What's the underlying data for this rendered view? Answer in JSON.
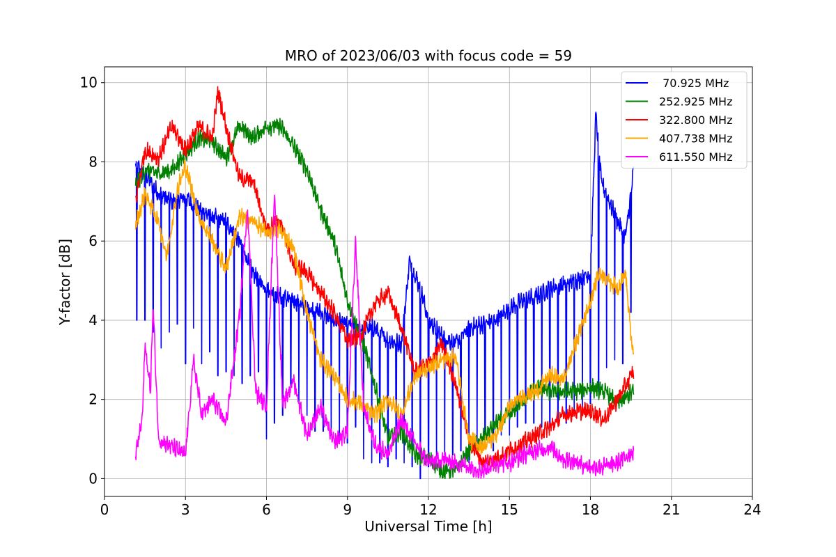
{
  "chart_data": {
    "type": "line",
    "title": "MRO of 2023/06/03 with focus code = 59",
    "xlabel": "Universal Time [h]",
    "ylabel": "Y-factor [dB]",
    "xlim": [
      0,
      24
    ],
    "ylim": [
      -0.45,
      10.4
    ],
    "xticks": [
      0,
      3,
      6,
      9,
      12,
      15,
      18,
      21,
      24
    ],
    "yticks": [
      0,
      2,
      4,
      6,
      8,
      10
    ],
    "grid": true,
    "legend_position": "top-right",
    "series": [
      {
        "name": " 70.925 MHz",
        "color": "#0000ff",
        "points": [
          [
            1.15,
            7.9
          ],
          [
            1.5,
            7.7
          ],
          [
            2.0,
            7.2
          ],
          [
            2.5,
            7.0
          ],
          [
            3.0,
            7.1
          ],
          [
            3.5,
            6.8
          ],
          [
            4.0,
            6.6
          ],
          [
            4.5,
            6.5
          ],
          [
            5.0,
            6.0
          ],
          [
            5.5,
            5.2
          ],
          [
            6.0,
            4.8
          ],
          [
            6.5,
            4.6
          ],
          [
            7.0,
            4.5
          ],
          [
            7.5,
            4.3
          ],
          [
            8.0,
            4.2
          ],
          [
            8.5,
            4.0
          ],
          [
            9.0,
            3.9
          ],
          [
            9.5,
            3.8
          ],
          [
            10.0,
            3.8
          ],
          [
            10.5,
            3.5
          ],
          [
            11.0,
            3.4
          ],
          [
            11.3,
            5.5
          ],
          [
            11.7,
            4.8
          ],
          [
            12.0,
            4.0
          ],
          [
            12.5,
            3.6
          ],
          [
            13.0,
            3.4
          ],
          [
            13.5,
            3.8
          ],
          [
            14.0,
            3.9
          ],
          [
            14.5,
            4.0
          ],
          [
            15.0,
            4.3
          ],
          [
            15.5,
            4.5
          ],
          [
            16.0,
            4.6
          ],
          [
            16.5,
            4.8
          ],
          [
            17.0,
            4.9
          ],
          [
            17.5,
            5.0
          ],
          [
            18.0,
            5.2
          ],
          [
            18.2,
            9.2
          ],
          [
            18.4,
            7.5
          ],
          [
            18.7,
            7.0
          ],
          [
            19.0,
            6.5
          ],
          [
            19.3,
            6.1
          ],
          [
            19.5,
            7.2
          ],
          [
            19.6,
            7.8
          ]
        ],
        "dips": [
          1.2,
          1.5,
          1.8,
          2.1,
          2.4,
          2.7,
          3.0,
          3.3,
          3.6,
          3.9,
          4.2,
          4.5,
          4.8,
          5.1,
          5.4,
          5.7,
          6.0,
          6.3,
          6.6,
          6.9,
          7.2,
          7.5,
          7.8,
          8.1,
          8.4,
          8.7,
          9.0,
          9.3,
          9.6,
          9.9,
          10.2,
          10.5,
          10.8,
          11.1,
          11.4,
          11.7,
          12.0,
          12.3,
          12.6,
          12.9,
          13.2,
          13.5,
          13.8,
          14.1,
          14.4,
          14.7,
          15.0,
          15.3,
          15.6,
          15.9,
          16.2,
          16.5,
          16.8,
          17.1,
          17.4,
          17.7,
          18.0,
          18.3,
          18.6,
          18.9,
          19.2,
          19.5
        ],
        "dip_low": [
          4.0,
          4.0,
          3.7,
          3.3,
          3.7,
          3.9,
          2.9,
          3.8,
          2.9,
          3.2,
          2.6,
          2.7,
          2.6,
          2.4,
          2.6,
          2.7,
          1.0,
          1.4,
          1.6,
          2.3,
          1.9,
          1.6,
          1.2,
          1.2,
          1.1,
          0.9,
          0.9,
          1.3,
          0.5,
          0.4,
          0.4,
          0.3,
          0.5,
          0.4,
          0.3,
          0.0,
          0.3,
          0.3,
          0.5,
          0.6,
          0.7,
          0.4,
          0.9,
          0.9,
          0.7,
          1.1,
          1.1,
          1.3,
          1.4,
          1.4,
          1.3,
          1.3,
          1.5,
          1.4,
          1.6,
          1.6,
          1.9,
          2.2,
          2.8,
          3.0,
          2.9,
          4.2
        ]
      },
      {
        "name": "252.925 MHz",
        "color": "#008000",
        "points": [
          [
            1.15,
            7.4
          ],
          [
            1.5,
            7.8
          ],
          [
            2.0,
            7.7
          ],
          [
            2.5,
            7.8
          ],
          [
            3.0,
            8.2
          ],
          [
            3.5,
            8.6
          ],
          [
            4.0,
            8.5
          ],
          [
            4.5,
            8.1
          ],
          [
            5.0,
            8.9
          ],
          [
            5.5,
            8.6
          ],
          [
            6.0,
            8.9
          ],
          [
            6.5,
            8.9
          ],
          [
            7.0,
            8.4
          ],
          [
            7.5,
            7.8
          ],
          [
            8.0,
            6.8
          ],
          [
            8.5,
            6.0
          ],
          [
            9.0,
            4.5
          ],
          [
            9.5,
            3.6
          ],
          [
            10.0,
            2.4
          ],
          [
            10.5,
            1.0
          ],
          [
            11.0,
            1.2
          ],
          [
            11.5,
            0.6
          ],
          [
            12.0,
            0.5
          ],
          [
            12.5,
            0.2
          ],
          [
            13.0,
            0.2
          ],
          [
            13.5,
            0.7
          ],
          [
            14.0,
            1.0
          ],
          [
            14.5,
            1.4
          ],
          [
            15.0,
            1.6
          ],
          [
            15.5,
            2.0
          ],
          [
            16.0,
            2.3
          ],
          [
            16.5,
            2.2
          ],
          [
            17.0,
            2.2
          ],
          [
            17.5,
            2.2
          ],
          [
            18.0,
            2.3
          ],
          [
            18.5,
            2.2
          ],
          [
            19.0,
            1.9
          ],
          [
            19.6,
            2.2
          ]
        ]
      },
      {
        "name": "322.800 MHz",
        "color": "#ff0000",
        "points": [
          [
            1.15,
            7.0
          ],
          [
            1.5,
            8.3
          ],
          [
            2.0,
            8.1
          ],
          [
            2.5,
            8.9
          ],
          [
            3.0,
            8.3
          ],
          [
            3.5,
            8.9
          ],
          [
            4.0,
            8.6
          ],
          [
            4.2,
            9.8
          ],
          [
            4.5,
            8.9
          ],
          [
            5.0,
            7.6
          ],
          [
            5.5,
            7.5
          ],
          [
            6.0,
            6.3
          ],
          [
            6.5,
            6.5
          ],
          [
            7.0,
            5.4
          ],
          [
            7.5,
            5.2
          ],
          [
            8.0,
            4.7
          ],
          [
            8.5,
            4.2
          ],
          [
            9.0,
            3.5
          ],
          [
            9.5,
            3.6
          ],
          [
            10.0,
            4.4
          ],
          [
            10.5,
            4.7
          ],
          [
            11.0,
            3.8
          ],
          [
            11.5,
            2.7
          ],
          [
            12.0,
            2.9
          ],
          [
            12.5,
            3.4
          ],
          [
            13.0,
            2.4
          ],
          [
            13.5,
            1.0
          ],
          [
            14.0,
            0.4
          ],
          [
            14.5,
            0.5
          ],
          [
            15.0,
            0.7
          ],
          [
            15.5,
            0.9
          ],
          [
            16.0,
            1.1
          ],
          [
            16.5,
            1.3
          ],
          [
            17.0,
            1.6
          ],
          [
            17.5,
            1.7
          ],
          [
            18.0,
            1.7
          ],
          [
            18.5,
            1.5
          ],
          [
            19.0,
            2.0
          ],
          [
            19.6,
            2.7
          ]
        ]
      },
      {
        "name": "407.738 MHz",
        "color": "#ffa500",
        "points": [
          [
            1.15,
            6.4
          ],
          [
            1.5,
            7.2
          ],
          [
            2.0,
            6.5
          ],
          [
            2.3,
            5.6
          ],
          [
            2.7,
            7.3
          ],
          [
            3.0,
            7.9
          ],
          [
            3.5,
            6.6
          ],
          [
            4.0,
            6.0
          ],
          [
            4.5,
            5.3
          ],
          [
            5.0,
            6.6
          ],
          [
            5.5,
            6.5
          ],
          [
            6.0,
            6.2
          ],
          [
            6.5,
            6.3
          ],
          [
            7.0,
            5.8
          ],
          [
            7.5,
            4.2
          ],
          [
            8.0,
            3.0
          ],
          [
            8.5,
            2.6
          ],
          [
            9.0,
            2.0
          ],
          [
            9.5,
            1.9
          ],
          [
            10.0,
            1.6
          ],
          [
            10.5,
            2.0
          ],
          [
            11.0,
            1.6
          ],
          [
            11.5,
            2.6
          ],
          [
            12.0,
            2.8
          ],
          [
            12.5,
            3.0
          ],
          [
            13.0,
            3.1
          ],
          [
            13.5,
            1.0
          ],
          [
            14.0,
            0.8
          ],
          [
            14.5,
            1.1
          ],
          [
            15.0,
            1.8
          ],
          [
            15.5,
            2.1
          ],
          [
            16.0,
            2.2
          ],
          [
            16.5,
            2.6
          ],
          [
            17.0,
            2.5
          ],
          [
            17.5,
            3.5
          ],
          [
            18.0,
            4.5
          ],
          [
            18.3,
            5.2
          ],
          [
            18.7,
            5.0
          ],
          [
            19.0,
            4.8
          ],
          [
            19.3,
            5.2
          ],
          [
            19.5,
            3.6
          ],
          [
            19.6,
            3.1
          ]
        ]
      },
      {
        "name": "611.550 MHz",
        "color": "#ff00ff",
        "points": [
          [
            1.15,
            0.6
          ],
          [
            1.4,
            1.5
          ],
          [
            1.5,
            3.4
          ],
          [
            1.7,
            2.2
          ],
          [
            1.8,
            4.4
          ],
          [
            2.0,
            1.0
          ],
          [
            2.5,
            0.8
          ],
          [
            3.0,
            0.6
          ],
          [
            3.3,
            3.0
          ],
          [
            3.6,
            1.6
          ],
          [
            4.0,
            2.0
          ],
          [
            4.5,
            1.4
          ],
          [
            5.0,
            4.1
          ],
          [
            5.3,
            6.9
          ],
          [
            5.6,
            2.2
          ],
          [
            6.0,
            1.8
          ],
          [
            6.3,
            7.3
          ],
          [
            6.6,
            1.8
          ],
          [
            7.0,
            2.5
          ],
          [
            7.5,
            1.1
          ],
          [
            8.0,
            1.8
          ],
          [
            8.5,
            0.9
          ],
          [
            9.0,
            1.2
          ],
          [
            9.3,
            6.0
          ],
          [
            9.6,
            1.8
          ],
          [
            10.0,
            0.9
          ],
          [
            10.5,
            0.6
          ],
          [
            11.0,
            1.5
          ],
          [
            11.5,
            0.9
          ],
          [
            12.0,
            0.4
          ],
          [
            12.5,
            0.5
          ],
          [
            13.0,
            0.4
          ],
          [
            13.5,
            0.3
          ],
          [
            14.0,
            0.2
          ],
          [
            14.5,
            0.4
          ],
          [
            15.0,
            0.4
          ],
          [
            15.5,
            0.6
          ],
          [
            16.0,
            0.7
          ],
          [
            16.5,
            0.8
          ],
          [
            17.0,
            0.5
          ],
          [
            17.5,
            0.4
          ],
          [
            18.0,
            0.3
          ],
          [
            18.5,
            0.3
          ],
          [
            19.0,
            0.4
          ],
          [
            19.6,
            0.7
          ]
        ]
      }
    ]
  }
}
